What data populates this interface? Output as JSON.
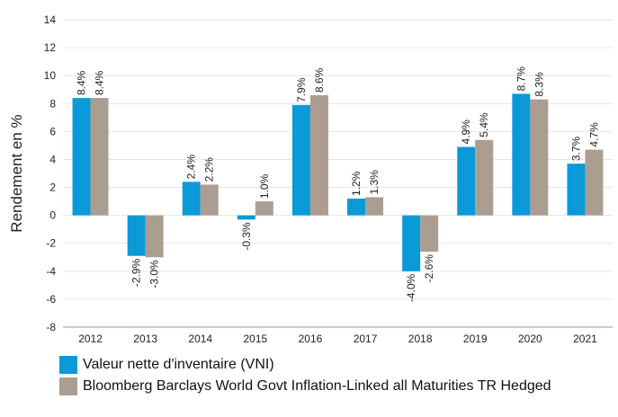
{
  "chart_data": {
    "type": "bar",
    "ylabel": "Rendement en %",
    "categories": [
      "2012",
      "2013",
      "2014",
      "2015",
      "2016",
      "2017",
      "2018",
      "2019",
      "2020",
      "2021"
    ],
    "series": [
      {
        "name": "Valeur nette d'inventaire (VNI)",
        "color": "#0a9ad8",
        "values": [
          8.4,
          -2.9,
          2.4,
          -0.3,
          7.9,
          1.2,
          -4.0,
          4.9,
          8.7,
          3.7
        ],
        "value_labels": [
          "8.4%",
          "-2.9%",
          "2.4%",
          "-0.3%",
          "7.9%",
          "1.2%",
          "-4.0%",
          "4.9%",
          "8.7%",
          "3.7%"
        ]
      },
      {
        "name": "Bloomberg Barclays World Govt Inflation-Linked all Maturities TR Hedged",
        "color": "#ab9e91",
        "values": [
          8.4,
          -3.0,
          2.2,
          1.0,
          8.6,
          1.3,
          -2.6,
          5.4,
          8.3,
          4.7
        ],
        "value_labels": [
          "8.4%",
          "-3.0%",
          "2.2%",
          "1.0%",
          "8.6%",
          "1.3%",
          "-2.6%",
          "5.4%",
          "8.3%",
          "4.7%"
        ]
      }
    ],
    "ylim": [
      -8,
      14
    ],
    "yticks": [
      -8,
      -6,
      -4,
      -2,
      0,
      2,
      4,
      6,
      8,
      10,
      12,
      14
    ],
    "grid": true
  }
}
